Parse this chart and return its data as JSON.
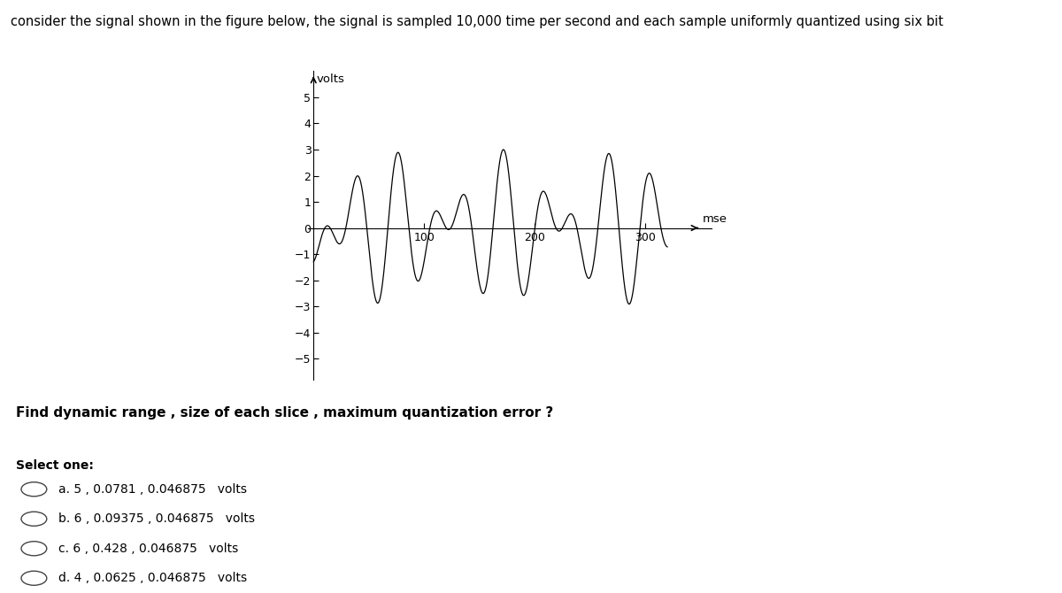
{
  "title": "consider the signal shown in the figure below, the signal is sampled 10,000 time per second and each sample uniformly quantized using six bit",
  "ylabel": "volts",
  "xlabel": "mse",
  "ylim": [
    -5.8,
    6.0
  ],
  "xlim": [
    -5,
    360
  ],
  "yticks": [
    -5,
    -4,
    -3,
    -2,
    -1,
    0,
    1,
    2,
    3,
    4,
    5
  ],
  "xticks": [
    100,
    200,
    300
  ],
  "question": "Find dynamic range , size of each slice , maximum quantization error ?",
  "select_label": "Select one:",
  "options": [
    "a. 5 , 0.0781 , 0.046875   volts",
    "b. 6 , 0.09375 , 0.046875   volts",
    "c. 6 , 0.428 , 0.046875   volts",
    "d. 4 , 0.0625 , 0.046875   volts"
  ],
  "bg_color": "#ffffff",
  "line_color": "#000000",
  "axis_color": "#000000",
  "title_fontsize": 10.5,
  "label_fontsize": 9.5,
  "tick_fontsize": 9,
  "option_fontsize": 10,
  "question_fontsize": 11,
  "select_fontsize": 10
}
